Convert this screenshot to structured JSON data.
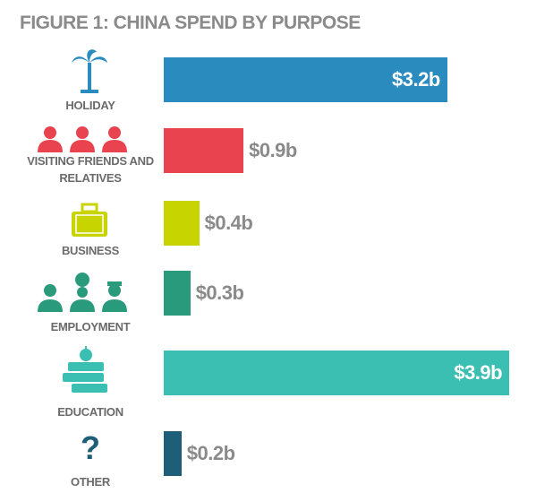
{
  "chart_data": {
    "type": "bar",
    "orientation": "horizontal",
    "title": "FIGURE 1: CHINA SPEND BY PURPOSE",
    "categories": [
      "HOLIDAY",
      "VISITING FRIENDS AND RELATIVES",
      "BUSINESS",
      "EMPLOYMENT",
      "EDUCATION",
      "OTHER"
    ],
    "values": [
      3.2,
      0.9,
      0.4,
      0.3,
      3.9,
      0.2
    ],
    "value_labels": [
      "$3.2b",
      "$0.9b",
      "$0.4b",
      "$0.3b",
      "$3.9b",
      "$0.2b"
    ],
    "colors": [
      "#2a8bbf",
      "#e8434f",
      "#c8d400",
      "#2a9a7d",
      "#3bbfb3",
      "#1e5e78"
    ]
  }
}
